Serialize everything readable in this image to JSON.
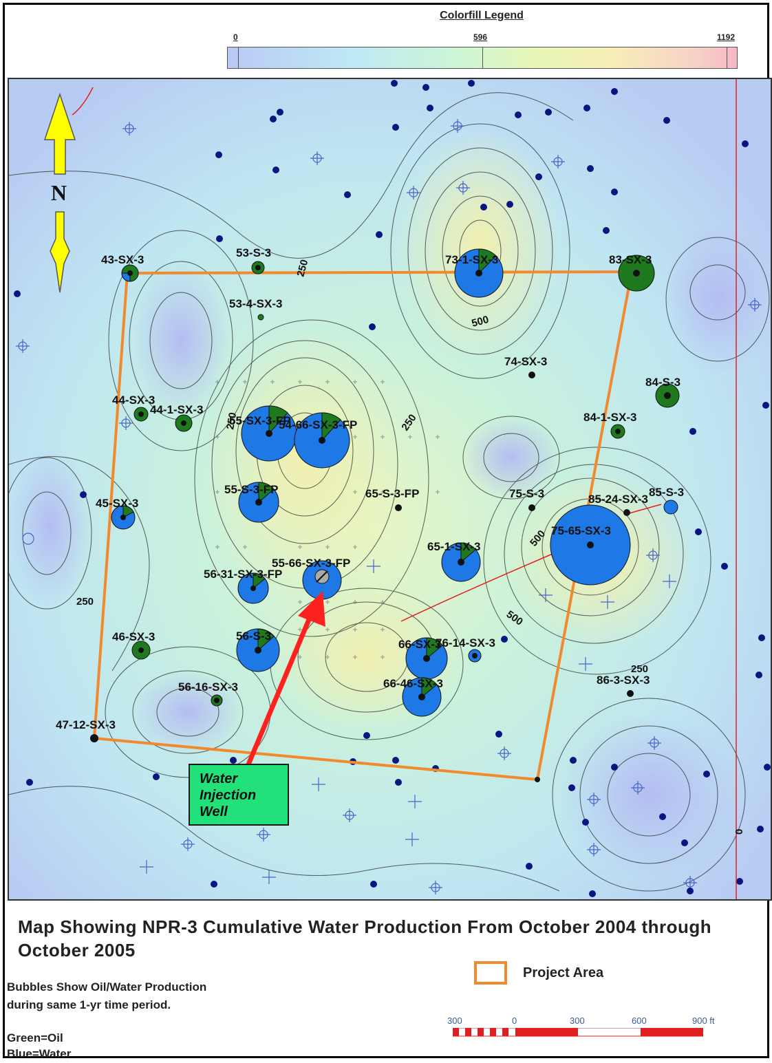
{
  "legend": {
    "title": "Colorfill Legend",
    "ticks": [
      "0",
      "596",
      "1192"
    ]
  },
  "north_label": "N",
  "callout_lines": [
    "Water",
    "Injection",
    "Well"
  ],
  "contour_labels": [
    "250",
    "500",
    "250",
    "250",
    "500",
    "250",
    "500",
    "250",
    "0"
  ],
  "wells": [
    {
      "label": "43-SX-3"
    },
    {
      "label": "53-S-3"
    },
    {
      "label": "53-4-SX-3"
    },
    {
      "label": "73-1-SX-3"
    },
    {
      "label": "83-SX-3"
    },
    {
      "label": "74-SX-3"
    },
    {
      "label": "84-S-3"
    },
    {
      "label": "84-1-SX-3"
    },
    {
      "label": "44-SX-3"
    },
    {
      "label": "44-1-SX-3"
    },
    {
      "label": "55-SX-3-FP"
    },
    {
      "label": "54-66-SX-3-FP"
    },
    {
      "label": "55-S-3-FP"
    },
    {
      "label": "65-S-3-FP"
    },
    {
      "label": "75-S-3"
    },
    {
      "label": "85-24-SX-3"
    },
    {
      "label": "85-S-3"
    },
    {
      "label": "45-SX-3"
    },
    {
      "label": "75-65-SX-3"
    },
    {
      "label": "65-1-SX-3"
    },
    {
      "label": "55-66-SX-3-FP"
    },
    {
      "label": "56-31-SX-3-FP"
    },
    {
      "label": "56-S-3"
    },
    {
      "label": "46-SX-3"
    },
    {
      "label": "66-SX-3"
    },
    {
      "label": "76-14-SX-3"
    },
    {
      "label": "66-46-SX-3"
    },
    {
      "label": "86-3-SX-3"
    },
    {
      "label": "56-16-SX-3"
    },
    {
      "label": "47-12-SX-3"
    }
  ],
  "title": "Map Showing NPR-3 Cumulative Water Production From October 2004 through October 2005",
  "notes": {
    "line1": "Bubbles Show Oil/Water Production",
    "line2": "during same 1-yr time period.",
    "green": "Green=Oil",
    "blue": "Blue=Water"
  },
  "project_area_label": "Project Area",
  "scale_labels": [
    "300",
    "0",
    "300",
    "600",
    "900 ft"
  ],
  "colors": {
    "oil": "#1f7a1f",
    "water": "#1e78e6",
    "project_area": "#f08a2d",
    "arrow": "#ff2020",
    "callout": "#22e07a",
    "north_arrow": "#ffff00"
  }
}
